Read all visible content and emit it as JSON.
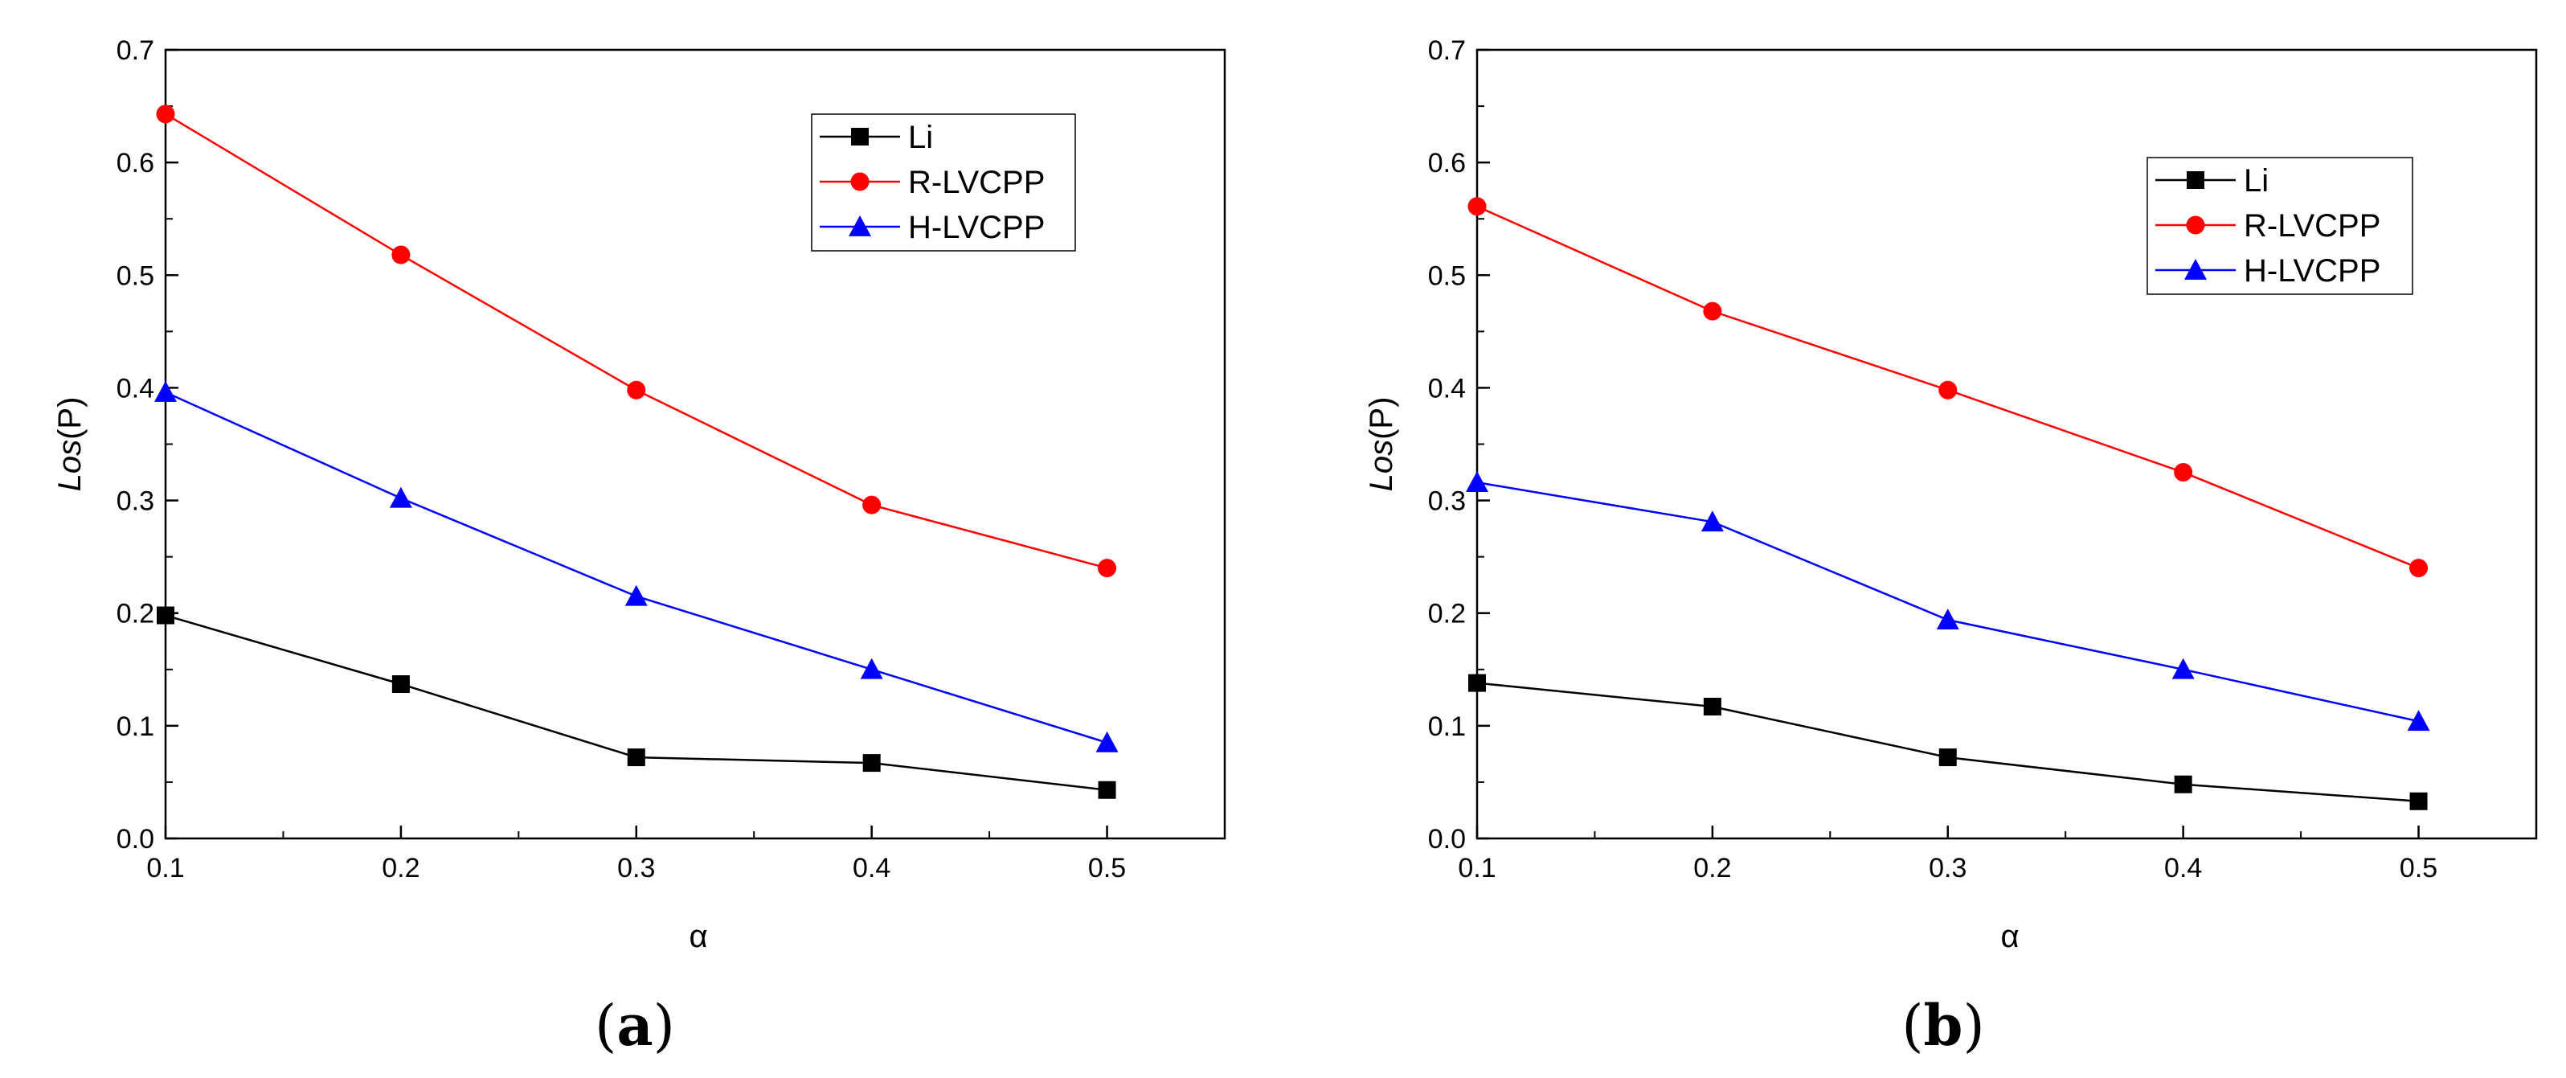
{
  "chart_data": [
    {
      "type": "line",
      "panel_label": "(a)",
      "xlabel": "α",
      "ylabel_italic": "Los",
      "ylabel_suffix": "(P)",
      "xlim": [
        0.1,
        0.55
      ],
      "ylim": [
        0.0,
        0.7
      ],
      "x_ticks": [
        "0.1",
        "0.2",
        "0.3",
        "0.4",
        "0.5"
      ],
      "y_ticks": [
        "0.0",
        "0.1",
        "0.2",
        "0.3",
        "0.4",
        "0.5",
        "0.6",
        "0.7"
      ],
      "legend_position": "top-right",
      "x": [
        0.1,
        0.2,
        0.3,
        0.4,
        0.5
      ],
      "series": [
        {
          "name": "Li",
          "color": "#000000",
          "marker": "square",
          "values": [
            0.198,
            0.137,
            0.072,
            0.067,
            0.043
          ]
        },
        {
          "name": "R-LVCPP",
          "color": "#ff0000",
          "marker": "circle",
          "values": [
            0.643,
            0.518,
            0.398,
            0.296,
            0.24
          ]
        },
        {
          "name": "H-LVCPP",
          "color": "#0000ff",
          "marker": "triangle",
          "values": [
            0.396,
            0.302,
            0.215,
            0.15,
            0.085
          ]
        }
      ]
    },
    {
      "type": "line",
      "panel_label": "(b)",
      "xlabel": "α",
      "ylabel_italic": "Los",
      "ylabel_suffix": "(P)",
      "xlim": [
        0.1,
        0.55
      ],
      "ylim": [
        0.0,
        0.7
      ],
      "x_ticks": [
        "0.1",
        "0.2",
        "0.3",
        "0.4",
        "0.5"
      ],
      "y_ticks": [
        "0.0",
        "0.1",
        "0.2",
        "0.3",
        "0.4",
        "0.5",
        "0.6",
        "0.7"
      ],
      "legend_position": "top-right",
      "x": [
        0.1,
        0.2,
        0.3,
        0.4,
        0.5
      ],
      "series": [
        {
          "name": "Li",
          "color": "#000000",
          "marker": "square",
          "values": [
            0.138,
            0.117,
            0.072,
            0.048,
            0.033
          ]
        },
        {
          "name": "R-LVCPP",
          "color": "#ff0000",
          "marker": "circle",
          "values": [
            0.561,
            0.468,
            0.398,
            0.325,
            0.24
          ]
        },
        {
          "name": "H-LVCPP",
          "color": "#0000ff",
          "marker": "triangle",
          "values": [
            0.316,
            0.281,
            0.194,
            0.15,
            0.104
          ]
        }
      ]
    }
  ]
}
